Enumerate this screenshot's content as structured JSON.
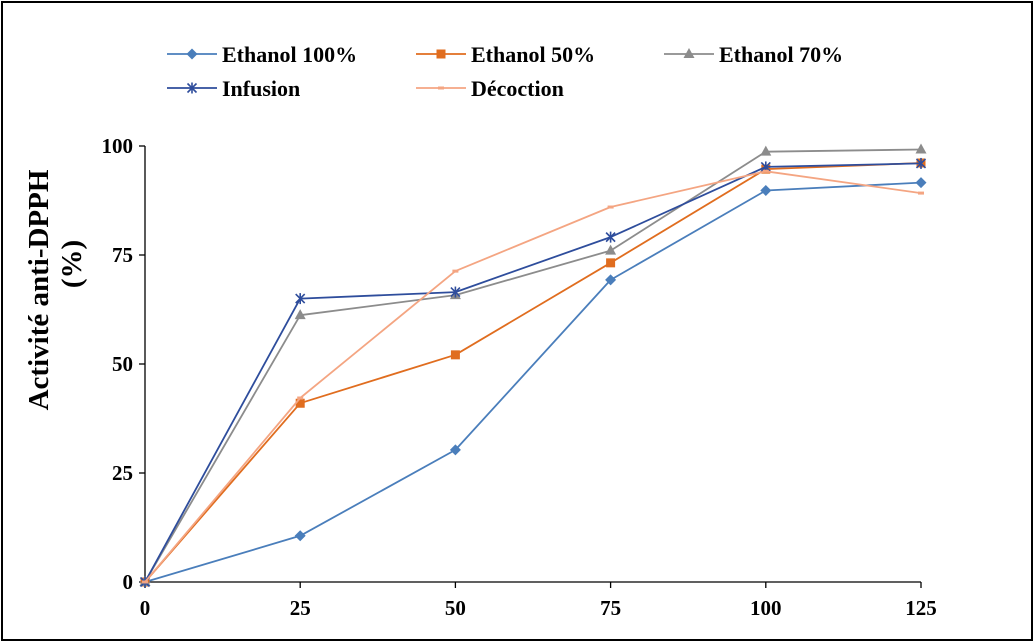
{
  "chart_data": {
    "type": "line",
    "x": [
      0,
      25,
      50,
      75,
      100,
      125
    ],
    "xlim": [
      0,
      125
    ],
    "ylim": [
      0,
      100
    ],
    "x_ticks": [
      "0",
      "25",
      "50",
      "75",
      "100",
      "125"
    ],
    "y_ticks": [
      "0",
      "25",
      "50",
      "75",
      "100"
    ],
    "ylabel_lines": [
      "Activité anti-DPPH",
      "(%)"
    ],
    "xlabel": "",
    "title": "",
    "grid": false,
    "legend_position": "top",
    "series": [
      {
        "name": "Ethanol 100%",
        "color": "#4a7ebb",
        "marker": "diamond",
        "values": [
          0,
          10.6,
          30.3,
          69.3,
          89.8,
          91.6
        ]
      },
      {
        "name": "Ethanol 50%",
        "color": "#e06d1f",
        "marker": "square",
        "values": [
          0,
          41,
          52.1,
          73.2,
          94.7,
          96.1
        ]
      },
      {
        "name": "Ethanol 70%",
        "color": "#8c8c8c",
        "marker": "triangle",
        "values": [
          0,
          61.2,
          65.8,
          76,
          98.7,
          99.2
        ]
      },
      {
        "name": "Infusion",
        "color": "#2e4d9c",
        "marker": "star",
        "values": [
          0,
          65,
          66.5,
          79.1,
          95.2,
          96
        ]
      },
      {
        "name": "Décoction",
        "color": "#f4a582",
        "marker": "dash",
        "values": [
          0,
          42.2,
          71.3,
          86,
          94.2,
          89.2
        ]
      }
    ]
  }
}
